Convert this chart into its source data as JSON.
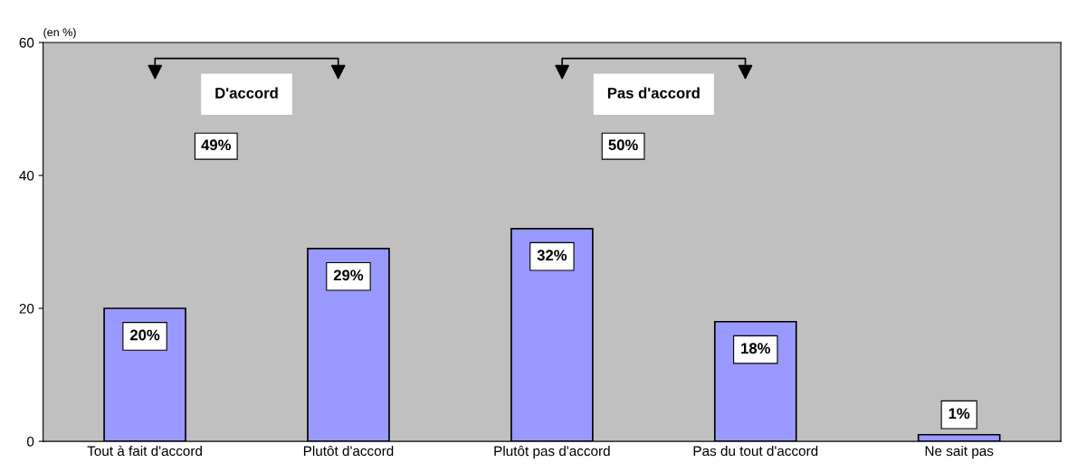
{
  "chart_data": {
    "type": "bar",
    "ylabel": "(en %)",
    "categories": [
      "Tout à fait d'accord",
      "Plutôt d'accord",
      "Plutôt pas d'accord",
      "Pas du tout d'accord",
      "Ne sait pas"
    ],
    "values": [
      20,
      29,
      32,
      18,
      1
    ],
    "value_labels": [
      "20%",
      "29%",
      "32%",
      "18%",
      "1%"
    ],
    "color": "#9999ff",
    "ylim": [
      0,
      60
    ],
    "yticks": [
      0,
      20,
      40,
      60
    ],
    "grid": false,
    "annotations": [
      "D'accord",
      "49%",
      "Pas d'accord",
      "50%"
    ]
  }
}
